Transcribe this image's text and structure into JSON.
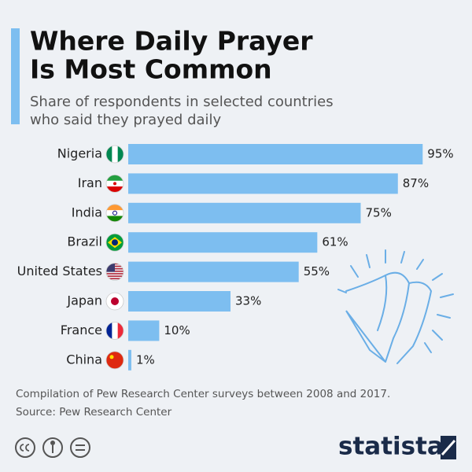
{
  "chart_data": {
    "type": "bar",
    "orientation": "horizontal",
    "title_lines": [
      "Where Daily Prayer",
      "Is Most Common"
    ],
    "subtitle_lines": [
      "Share of respondents in selected countries",
      "who said they prayed daily"
    ],
    "categories": [
      "Nigeria",
      "Iran",
      "India",
      "Brazil",
      "United States",
      "Japan",
      "France",
      "China"
    ],
    "values": [
      95,
      87,
      75,
      61,
      55,
      33,
      10,
      1
    ],
    "value_labels": [
      "95%",
      "87%",
      "75%",
      "61%",
      "55%",
      "33%",
      "10%",
      "1%"
    ],
    "color": "#7dbef0",
    "notes": "Compilation of Pew Research Center surveys between 2008 and 2017.",
    "source": "Source: Pew Research Center",
    "brand": "statista"
  }
}
